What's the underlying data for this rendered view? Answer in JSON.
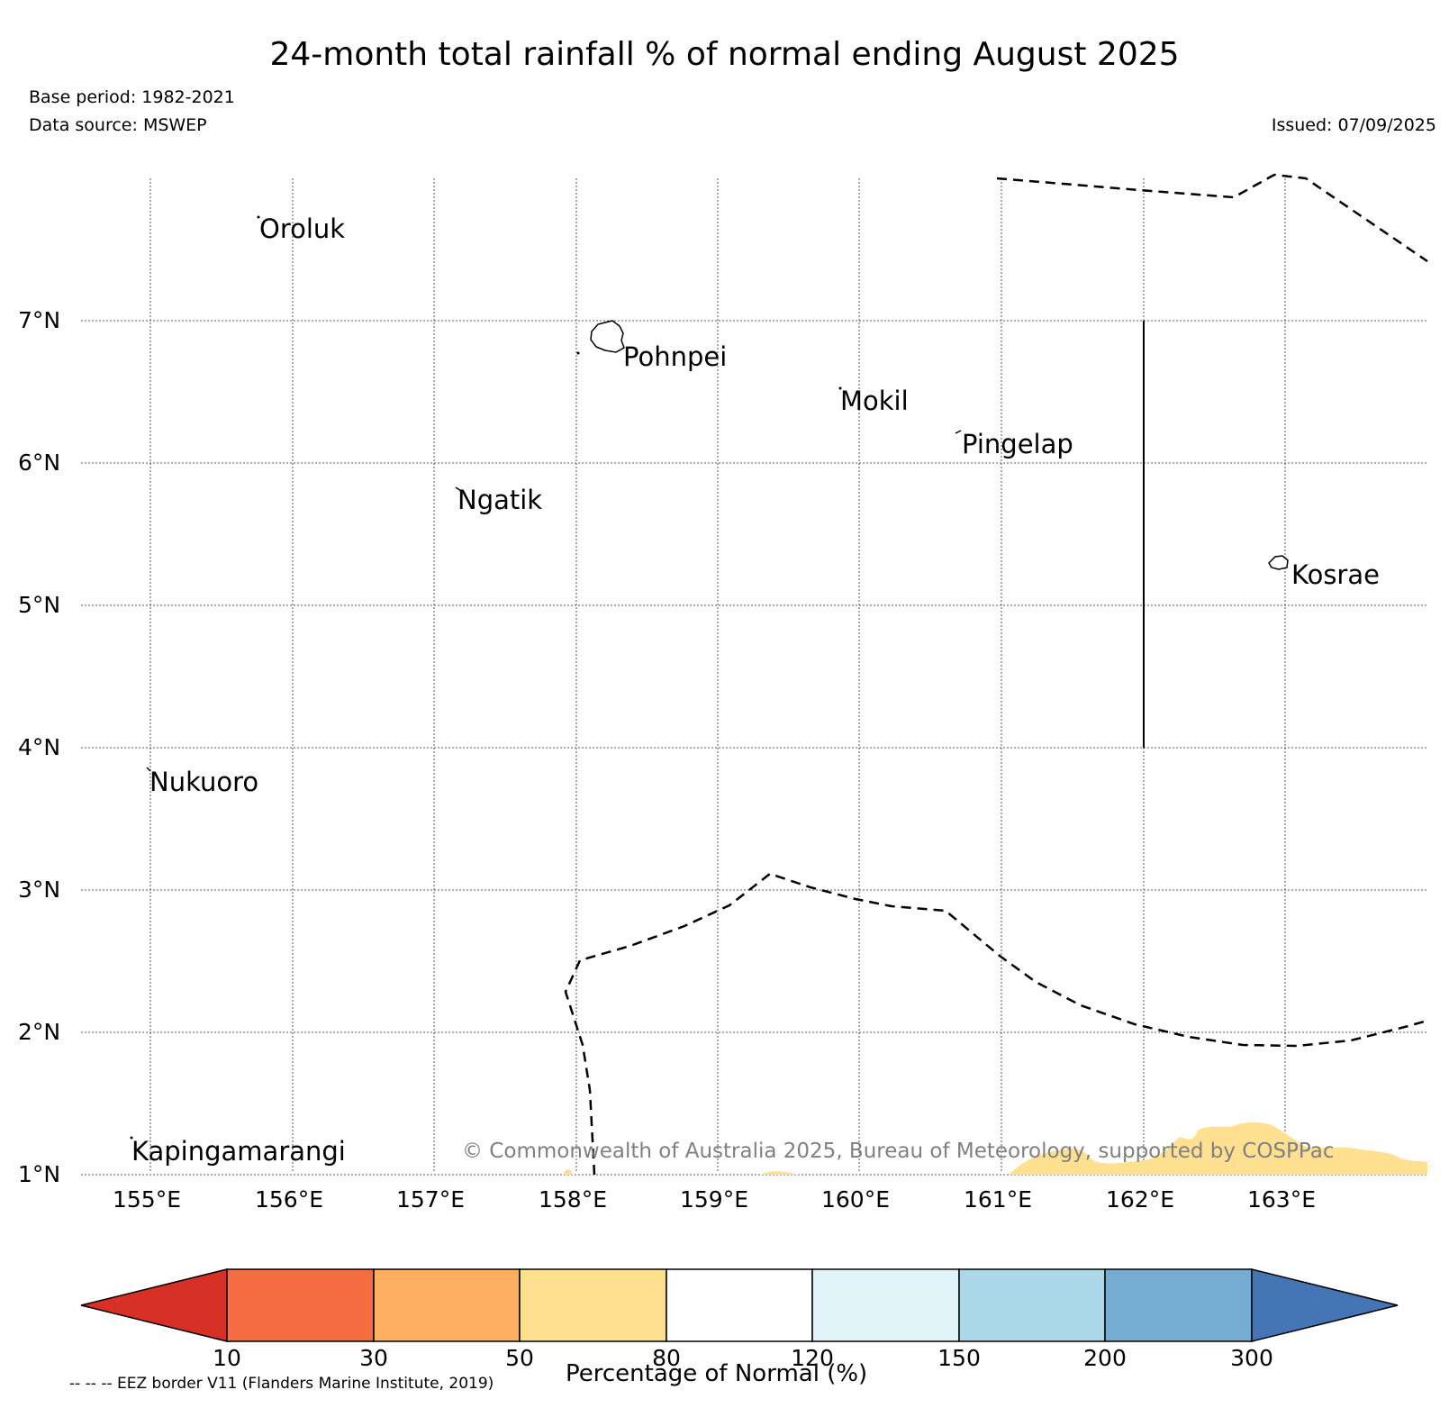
{
  "title": "24-month total rainfall % of normal ending August 2025",
  "base_period": "Base period: 1982-2021",
  "data_source": "Data source: MSWEP",
  "issued": "Issued: 07/09/2025",
  "copyright": "© Commonwealth of Australia 2025, Bureau of Meteorology, supported by COSPPac",
  "eez_note": "-- -- -- EEZ border V11 (Flanders Marine Institute, 2019)",
  "latitudes": [
    "7°N",
    "6°N",
    "5°N",
    "4°N",
    "3°N",
    "2°N",
    "1°N"
  ],
  "longitudes": [
    "155°E",
    "156°E",
    "157°E",
    "158°E",
    "159°E",
    "160°E",
    "161°E",
    "162°E",
    "163°E"
  ],
  "places": {
    "oroluk": "Oroluk",
    "pohnpei": "Pohnpei",
    "mokil": "Mokil",
    "pingelap": "Pingelap",
    "ngatik": "Ngatik",
    "kosrae": "Kosrae",
    "nukuoro": "Nukuoro",
    "kapingamarangi": "Kapingamarangi"
  },
  "colorbar": {
    "title": "Percentage of Normal (%)",
    "ticks": [
      "10",
      "30",
      "50",
      "80",
      "120",
      "150",
      "200",
      "300"
    ],
    "colors": [
      "#d73027",
      "#f46d43",
      "#fdae61",
      "#fee090",
      "#ffffff",
      "#e0f3f8",
      "#abd9e9",
      "#74add1",
      "#4575b4"
    ]
  }
}
